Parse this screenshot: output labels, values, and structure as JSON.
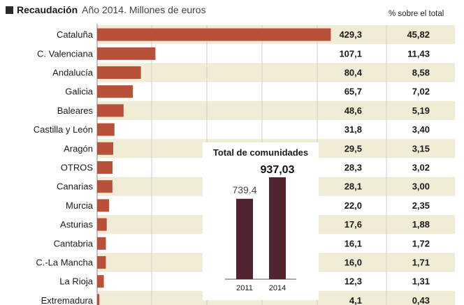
{
  "colors": {
    "bar": "#b9503a",
    "stripe": "#f1ecd6",
    "axis": "#8a8a8a",
    "inset_bar": "#52242f"
  },
  "header": {
    "title": "Recaudación",
    "subtitle": "Año 2014. Millones de euros",
    "pct_label": "% sobre el total"
  },
  "chart_data": [
    {
      "type": "bar",
      "orientation": "horizontal",
      "title": "Recaudación",
      "subtitle": "Año 2014. Millones de euros",
      "categories": [
        "Cataluña",
        "C. Valenciana",
        "Andalucía",
        "Galicia",
        "Baleares",
        "Castilla y León",
        "Aragón",
        "OTROS",
        "Canarias",
        "Murcia",
        "Asturias",
        "Cantabria",
        "C.-La Mancha",
        "La Rioja",
        "Extremadura"
      ],
      "values": [
        429.3,
        107.1,
        80.4,
        65.7,
        48.6,
        31.8,
        29.5,
        28.3,
        28.1,
        22.0,
        17.6,
        16.1,
        16.0,
        12.3,
        4.1
      ],
      "value_labels": [
        "429,3",
        "107,1",
        "80,4",
        "65,7",
        "48,6",
        "31,8",
        "29,5",
        "28,3",
        "28,1",
        "22,0",
        "17,6",
        "16,1",
        "16,0",
        "12,3",
        "4,1"
      ],
      "percent_labels": [
        "45,82",
        "11,43",
        "8,58",
        "7,02",
        "5,19",
        "3,40",
        "3,15",
        "3,02",
        "3,00",
        "2,35",
        "1,88",
        "1,72",
        "1,71",
        "1,31",
        "0,43"
      ],
      "percent_header": "% sobre el total",
      "xlim": [
        0,
        430
      ],
      "grid": true
    },
    {
      "type": "bar",
      "title": "Total de comunidades",
      "categories": [
        "2011",
        "2014"
      ],
      "values": [
        739.4,
        937.03
      ],
      "value_labels": [
        "739.4",
        "937,03"
      ]
    }
  ]
}
